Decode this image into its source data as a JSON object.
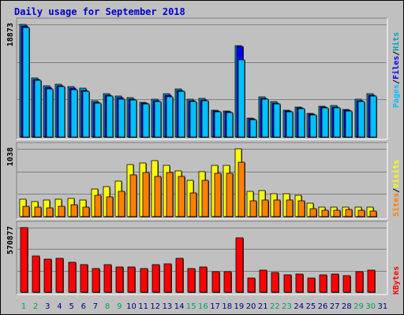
{
  "title": "Daily usage for September 2018",
  "colors": {
    "hits": "#00a0c0",
    "files": "#0000ff",
    "pages": "#00c0ff",
    "visits": "#ffff00",
    "sites": "#ff8000",
    "kbytes": "#ff0000",
    "weekend_day": "#00a060",
    "weekday": "#000080",
    "title": "#0000cc"
  },
  "legends": {
    "top": [
      "Pages",
      "/",
      "Files",
      "/",
      "Hits"
    ],
    "middle": [
      "Sites",
      "/",
      "Visits"
    ],
    "bottom": [
      "KBytes"
    ]
  },
  "chart_data": {
    "type": "bar",
    "title": "Daily usage for September 2018",
    "categories": [
      "1",
      "2",
      "3",
      "4",
      "5",
      "6",
      "7",
      "8",
      "9",
      "10",
      "11",
      "12",
      "13",
      "14",
      "15",
      "16",
      "17",
      "18",
      "19",
      "20",
      "21",
      "22",
      "23",
      "24",
      "25",
      "26",
      "27",
      "28",
      "29",
      "30",
      "31"
    ],
    "weekend_days": [
      "1",
      "2",
      "8",
      "9",
      "15",
      "16",
      "22",
      "23",
      "29",
      "30"
    ],
    "panels": [
      {
        "name": "hits-files-pages",
        "max_label": "18873",
        "ylim": [
          0,
          18873
        ],
        "series": [
          {
            "name": "Hits",
            "values": [
              18873,
              9870,
              8560,
              8900,
              8460,
              8120,
              6080,
              7260,
              6810,
              6600,
              5860,
              6340,
              7230,
              8060,
              6320,
              6460,
              4490,
              4360,
              15250,
              3180,
              6770,
              5880,
              4520,
              5080,
              3990,
              5190,
              5260,
              4610,
              6300,
              7280,
              0
            ]
          },
          {
            "name": "Files",
            "values": [
              18600,
              9600,
              8250,
              8600,
              8150,
              7850,
              5850,
              7000,
              6550,
              6350,
              5650,
              6100,
              6950,
              7800,
              6100,
              6230,
              4320,
              4200,
              15200,
              3050,
              6520,
              5650,
              4350,
              4880,
              3830,
              5000,
              5060,
              4430,
              6060,
              7000,
              0
            ]
          },
          {
            "name": "Pages",
            "values": [
              18400,
              9450,
              8050,
              8400,
              7950,
              7650,
              5650,
              6800,
              6350,
              6150,
              5500,
              5900,
              6750,
              7600,
              5900,
              6050,
              4200,
              4080,
              12900,
              2950,
              6350,
              5500,
              4220,
              4750,
              3720,
              4850,
              4920,
              4300,
              5900,
              6850,
              0
            ]
          }
        ]
      },
      {
        "name": "visits-sites",
        "max_label": "1038",
        "ylim": [
          0,
          1038
        ],
        "series": [
          {
            "name": "Visits",
            "values": [
              270,
              235,
              250,
              260,
              280,
              250,
              420,
              460,
              540,
              800,
              820,
              860,
              790,
              700,
              560,
              690,
              780,
              780,
              1038,
              390,
              400,
              350,
              350,
              330,
              210,
              150,
              140,
              150,
              150,
              150,
              0
            ]
          },
          {
            "name": "Sites",
            "values": [
              160,
              150,
              130,
              155,
              180,
              145,
              330,
              300,
              390,
              640,
              680,
              620,
              680,
              610,
              360,
              560,
              660,
              660,
              830,
              240,
              250,
              250,
              250,
              240,
              120,
              100,
              95,
              110,
              100,
              90,
              0
            ]
          }
        ]
      },
      {
        "name": "kbytes",
        "max_label": "570877",
        "ylim": [
          0,
          570877
        ],
        "series": [
          {
            "name": "KBytes",
            "values": [
              570877,
              323000,
              291000,
              297000,
              268000,
              244000,
              208000,
              245000,
              223000,
              224000,
              210000,
              243000,
              251000,
              302000,
              211000,
              220000,
              184000,
              184000,
              479000,
              124000,
              196000,
              175000,
              151000,
              160000,
              127000,
              155000,
              163000,
              147000,
              179000,
              198000,
              0
            ]
          }
        ]
      }
    ]
  }
}
